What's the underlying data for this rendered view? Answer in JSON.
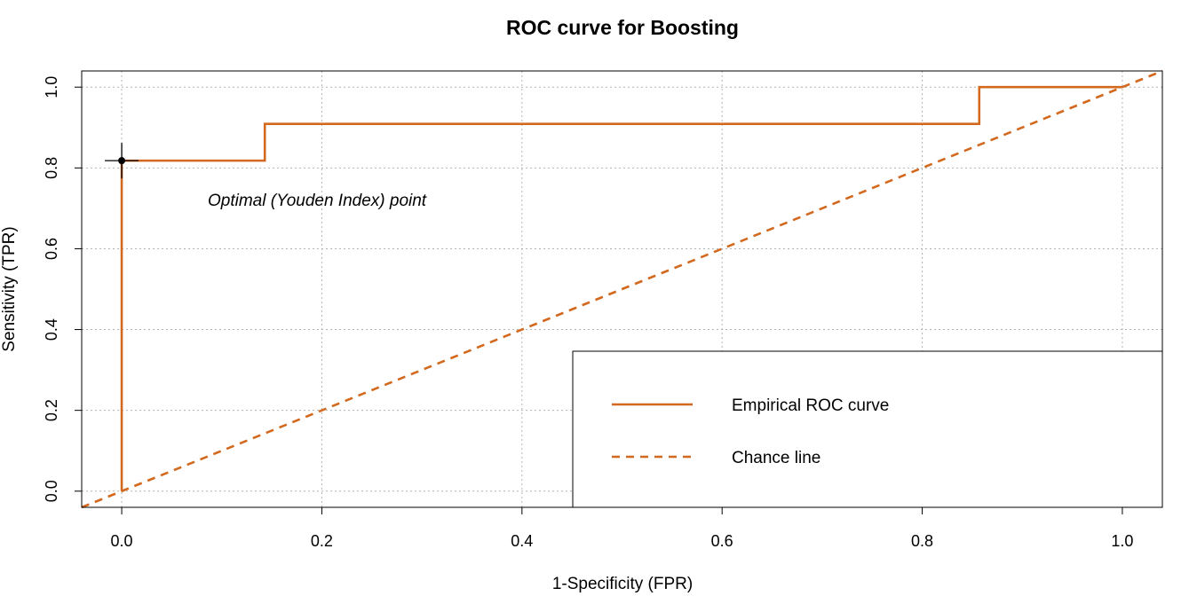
{
  "chart_data": {
    "type": "line",
    "title": "ROC curve for Boosting",
    "xlabel": "1-Specificity (FPR)",
    "ylabel": "Sensitivity (TPR)",
    "xlim": [
      -0.04,
      1.04
    ],
    "ylim": [
      -0.04,
      1.04
    ],
    "x_ticks": [
      0.0,
      0.2,
      0.4,
      0.6,
      0.8,
      1.0
    ],
    "y_ticks": [
      0.0,
      0.2,
      0.4,
      0.6,
      0.8,
      1.0
    ],
    "x_tick_labels": [
      "0.0",
      "0.2",
      "0.4",
      "0.6",
      "0.8",
      "1.0"
    ],
    "y_tick_labels": [
      "0.0",
      "0.2",
      "0.4",
      "0.6",
      "0.8",
      "1.0"
    ],
    "grid": true,
    "legend_position": "bottom-right",
    "series": [
      {
        "name": "Empirical ROC curve",
        "style": "solid",
        "color": "#d2691e",
        "x": [
          0.0,
          0.0,
          0.143,
          0.143,
          0.857,
          0.857,
          1.0
        ],
        "y": [
          0.0,
          0.818,
          0.818,
          0.909,
          0.909,
          1.0,
          1.0
        ]
      },
      {
        "name": "Chance line",
        "style": "dashed",
        "color": "#d2691e",
        "x": [
          -0.04,
          1.04
        ],
        "y": [
          -0.04,
          1.04
        ]
      }
    ],
    "optimal_point": {
      "x": 0.0,
      "y": 0.818
    },
    "annotation": "Optimal (Youden Index) point"
  }
}
